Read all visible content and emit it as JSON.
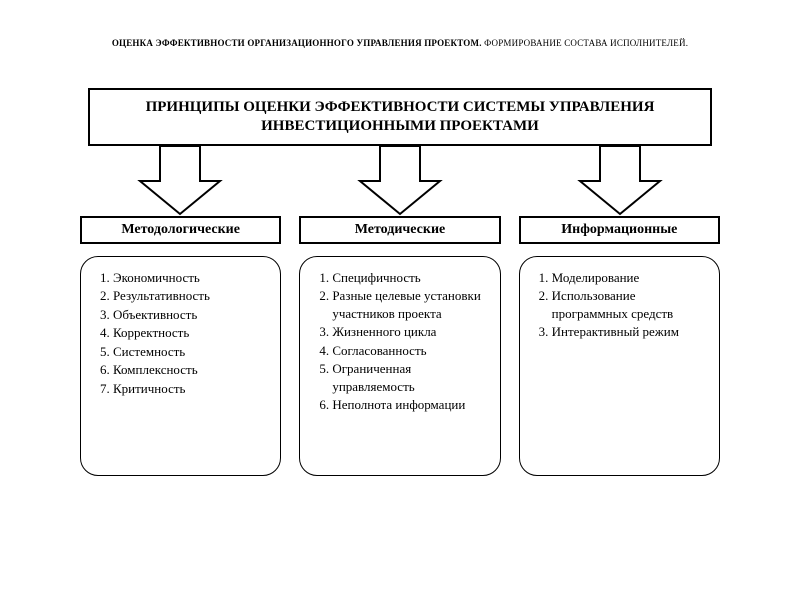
{
  "title_bold": "ОЦЕНКА ЭФФЕКТИВНОСТИ ОРГАНИЗАЦИОННОГО УПРАВЛЕНИЯ ПРОЕКТОМ.",
  "title_rest": " ФОРМИРОВАНИЕ СОСТАВА ИСПОЛНИТЕЛЕЙ.",
  "main_box_line1": "ПРИНЦИПЫ ОЦЕНКИ ЭФФЕКТИВНОСТИ СИСТЕМЫ УПРАВЛЕНИЯ",
  "main_box_line2": "ИНВЕСТИЦИОННЫМИ ПРОЕКТАМИ",
  "diagram": {
    "type": "flowchart",
    "background_color": "#ffffff",
    "border_color": "#000000",
    "text_color": "#000000",
    "arrow_fill": "#ffffff",
    "arrow_stroke": "#000000",
    "title_fontsize": 9,
    "main_box_fontsize": 15,
    "header_fontsize": 14,
    "body_fontsize": 13,
    "body_border_radius": 18,
    "columns": [
      {
        "header": "Методологические",
        "items": [
          "Экономичность",
          "Результативность",
          "Объективность",
          "Корректность",
          "Системность",
          "Комплексность",
          "Критичность"
        ]
      },
      {
        "header": "Методические",
        "items": [
          "Специфичность",
          "Разные целевые установки участников проекта",
          "Жизненного цикла",
          "Согласованность",
          "Ограниченная управляемость",
          "Неполнота информации"
        ]
      },
      {
        "header": "Информационные",
        "items": [
          "Моделирование",
          "Использование программных средств",
          "Интерактивный режим"
        ]
      }
    ]
  }
}
